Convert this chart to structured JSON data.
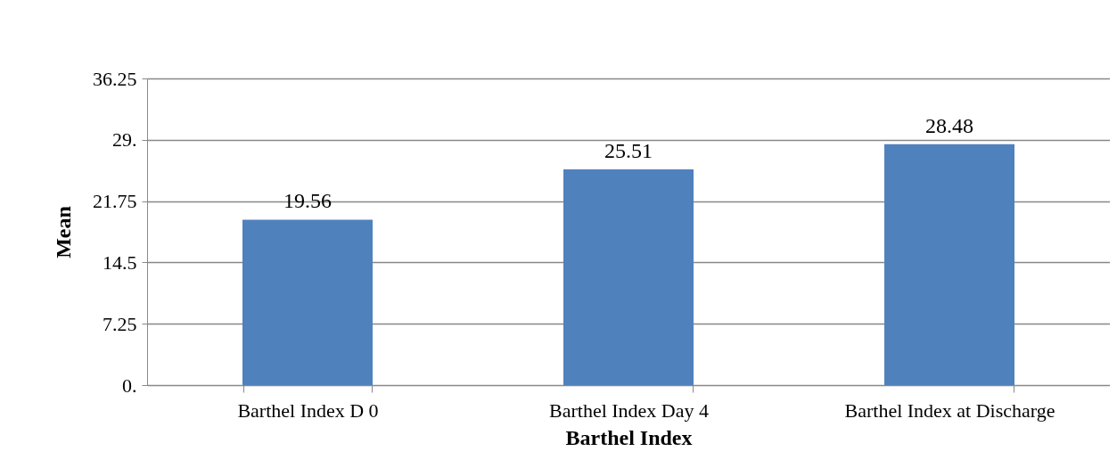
{
  "chart_data": {
    "type": "bar",
    "xlabel": "Barthel Index",
    "ylabel": "Mean",
    "categories": [
      "Barthel Index D 0",
      "Barthel Index Day 4",
      "Barthel Index at Discharge"
    ],
    "values": [
      19.56,
      25.51,
      28.48
    ],
    "color": "#4f81bd",
    "ylim": [
      0,
      36.25
    ],
    "yticks": [
      {
        "value": 0,
        "label": "0."
      },
      7.25,
      14.5,
      21.75,
      {
        "value": 29,
        "label": "29."
      },
      36.25
    ],
    "grid": "y",
    "data_labels": true
  }
}
